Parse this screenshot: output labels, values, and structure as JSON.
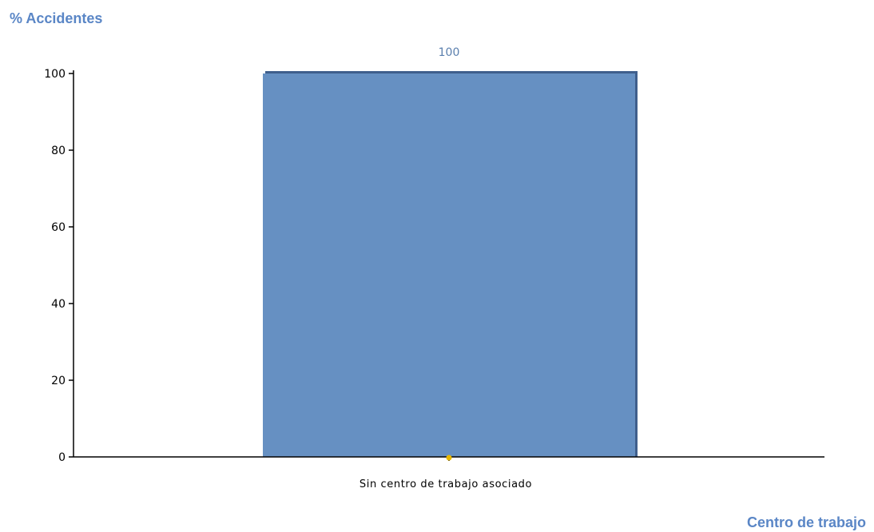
{
  "colors": {
    "bar": "#6690c2",
    "bar_edge": "#3f5f8c",
    "title": "#5a86c6",
    "data_label": "#5a7fae",
    "axis": "#000000",
    "marker": "#e8b800"
  },
  "chart_data": {
    "type": "bar",
    "ylabel": "% Accidentes",
    "xlabel": "Centro de trabajo",
    "categories": [
      "Sin centro de trabajo asociado"
    ],
    "values": [
      100
    ],
    "data_labels": [
      "100"
    ],
    "ylim": [
      0,
      100
    ],
    "yticks": [
      0,
      20,
      40,
      60,
      80,
      100
    ],
    "grid": false,
    "legend": "none"
  }
}
